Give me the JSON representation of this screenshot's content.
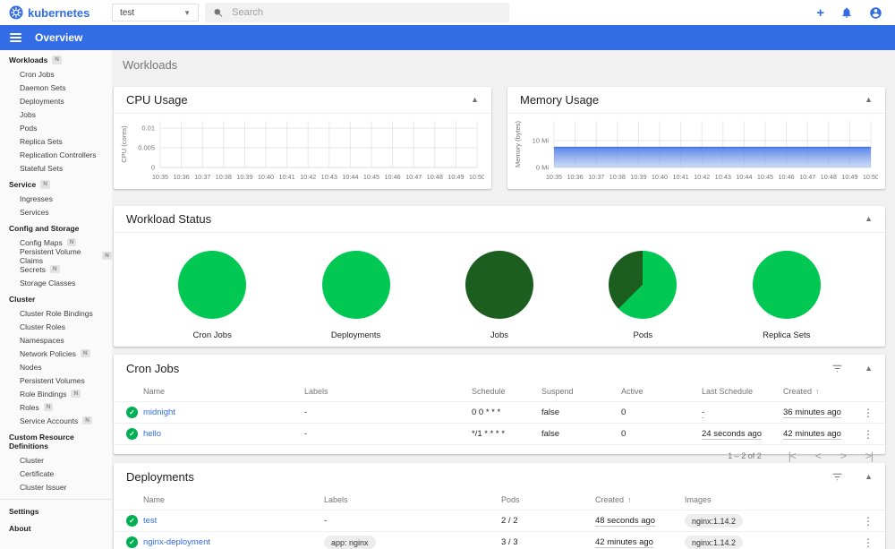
{
  "colors": {
    "primary": "#326de6",
    "success": "#00c852",
    "success_dark": "#1b5e20",
    "link": "#326de6",
    "area_line": "#3d72e4"
  },
  "header": {
    "logo_text": "kubernetes",
    "namespace_value": "test",
    "search_placeholder": "Search"
  },
  "appbar": {
    "title": "Overview"
  },
  "page": {
    "title": "Workloads"
  },
  "sidebar": {
    "sections": [
      {
        "label": "Workloads",
        "badge": "N",
        "items": [
          {
            "label": "Cron Jobs"
          },
          {
            "label": "Daemon Sets"
          },
          {
            "label": "Deployments"
          },
          {
            "label": "Jobs"
          },
          {
            "label": "Pods"
          },
          {
            "label": "Replica Sets"
          },
          {
            "label": "Replication Controllers"
          },
          {
            "label": "Stateful Sets"
          }
        ]
      },
      {
        "label": "Service",
        "badge": "N",
        "items": [
          {
            "label": "Ingresses"
          },
          {
            "label": "Services"
          }
        ]
      },
      {
        "label": "Config and Storage",
        "badge": "",
        "items": [
          {
            "label": "Config Maps",
            "badge": "N"
          },
          {
            "label": "Persistent Volume Claims",
            "badge": "N"
          },
          {
            "label": "Secrets",
            "badge": "N"
          },
          {
            "label": "Storage Classes"
          }
        ]
      },
      {
        "label": "Cluster",
        "badge": "",
        "items": [
          {
            "label": "Cluster Role Bindings"
          },
          {
            "label": "Cluster Roles"
          },
          {
            "label": "Namespaces"
          },
          {
            "label": "Network Policies",
            "badge": "N"
          },
          {
            "label": "Nodes"
          },
          {
            "label": "Persistent Volumes"
          },
          {
            "label": "Role Bindings",
            "badge": "N"
          },
          {
            "label": "Roles",
            "badge": "N"
          },
          {
            "label": "Service Accounts",
            "badge": "N"
          }
        ]
      },
      {
        "label": "Custom Resource Definitions",
        "badge": "",
        "items": [
          {
            "label": "Cluster"
          },
          {
            "label": "Certificate"
          },
          {
            "label": "Cluster Issuer"
          }
        ]
      }
    ],
    "footer": [
      {
        "label": "Settings"
      },
      {
        "label": "About"
      }
    ]
  },
  "chart_data": [
    {
      "type": "line",
      "title": "CPU Usage",
      "ylabel": "CPU (cores)",
      "yticks": [
        "0",
        "0.005",
        "0.01"
      ],
      "ylim": [
        0,
        0.01
      ],
      "x": [
        "10:35",
        "10:36",
        "10:37",
        "10:38",
        "10:39",
        "10:40",
        "10:41",
        "10:42",
        "10:43",
        "10:44",
        "10:45",
        "10:46",
        "10:47",
        "10:48",
        "10:49",
        "10:50"
      ],
      "series": []
    },
    {
      "type": "area",
      "title": "Memory Usage",
      "ylabel": "Memory (bytes)",
      "yticks": [
        "0 Mi",
        "10 Mi"
      ],
      "ylim_mi": [
        0,
        17
      ],
      "x": [
        "10:35",
        "10:36",
        "10:37",
        "10:38",
        "10:39",
        "10:40",
        "10:41",
        "10:42",
        "10:43",
        "10:44",
        "10:45",
        "10:46",
        "10:47",
        "10:48",
        "10:49",
        "10:50"
      ],
      "values_mi": [
        7.5,
        7.5,
        7.5,
        7.5,
        7.5,
        7.5,
        7.5,
        7.5,
        7.5,
        7.5,
        7.5,
        7.5,
        7.5,
        7.5,
        7.5,
        7.5
      ]
    },
    {
      "type": "pie",
      "title": "Workload Status",
      "pies": [
        {
          "label": "Cron Jobs",
          "segments": [
            {
              "status": "running",
              "color": "#00c852",
              "fraction": 1
            }
          ]
        },
        {
          "label": "Deployments",
          "segments": [
            {
              "status": "running",
              "color": "#00c852",
              "fraction": 1
            }
          ]
        },
        {
          "label": "Jobs",
          "segments": [
            {
              "status": "succeeded",
              "color": "#1b5e20",
              "fraction": 1
            }
          ]
        },
        {
          "label": "Pods",
          "segments": [
            {
              "status": "running",
              "color": "#00c852",
              "fraction": 0.625
            },
            {
              "status": "succeeded",
              "color": "#1b5e20",
              "fraction": 0.375
            }
          ]
        },
        {
          "label": "Replica Sets",
          "segments": [
            {
              "status": "running",
              "color": "#00c852",
              "fraction": 1
            }
          ]
        }
      ]
    }
  ],
  "tables": {
    "cron_jobs": {
      "title": "Cron Jobs",
      "columns": [
        "Name",
        "Labels",
        "Schedule",
        "Suspend",
        "Active",
        "Last Schedule",
        "Created"
      ],
      "sort_column": "Created",
      "rows": [
        {
          "name": "midnight",
          "labels": "-",
          "schedule": "0 0 * * *",
          "suspend": "false",
          "active": "0",
          "last_schedule": "-",
          "created": "36 minutes ago"
        },
        {
          "name": "hello",
          "labels": "-",
          "schedule": "*/1 * * * *",
          "suspend": "false",
          "active": "0",
          "last_schedule": "24 seconds ago",
          "created": "42 minutes ago"
        }
      ],
      "pagination": {
        "range": "1 – 2 of 2"
      }
    },
    "deployments": {
      "title": "Deployments",
      "columns": [
        "Name",
        "Labels",
        "Pods",
        "Created",
        "Images"
      ],
      "sort_column": "Created",
      "rows": [
        {
          "name": "test",
          "labels": "-",
          "labels_is_chip": false,
          "pods": "2 / 2",
          "created": "48 seconds ago",
          "image": "nginx:1.14.2"
        },
        {
          "name": "nginx-deployment",
          "labels": "app: nginx",
          "labels_is_chip": true,
          "pods": "3 / 3",
          "created": "42 minutes ago",
          "image": "nginx:1.14.2"
        }
      ]
    }
  }
}
